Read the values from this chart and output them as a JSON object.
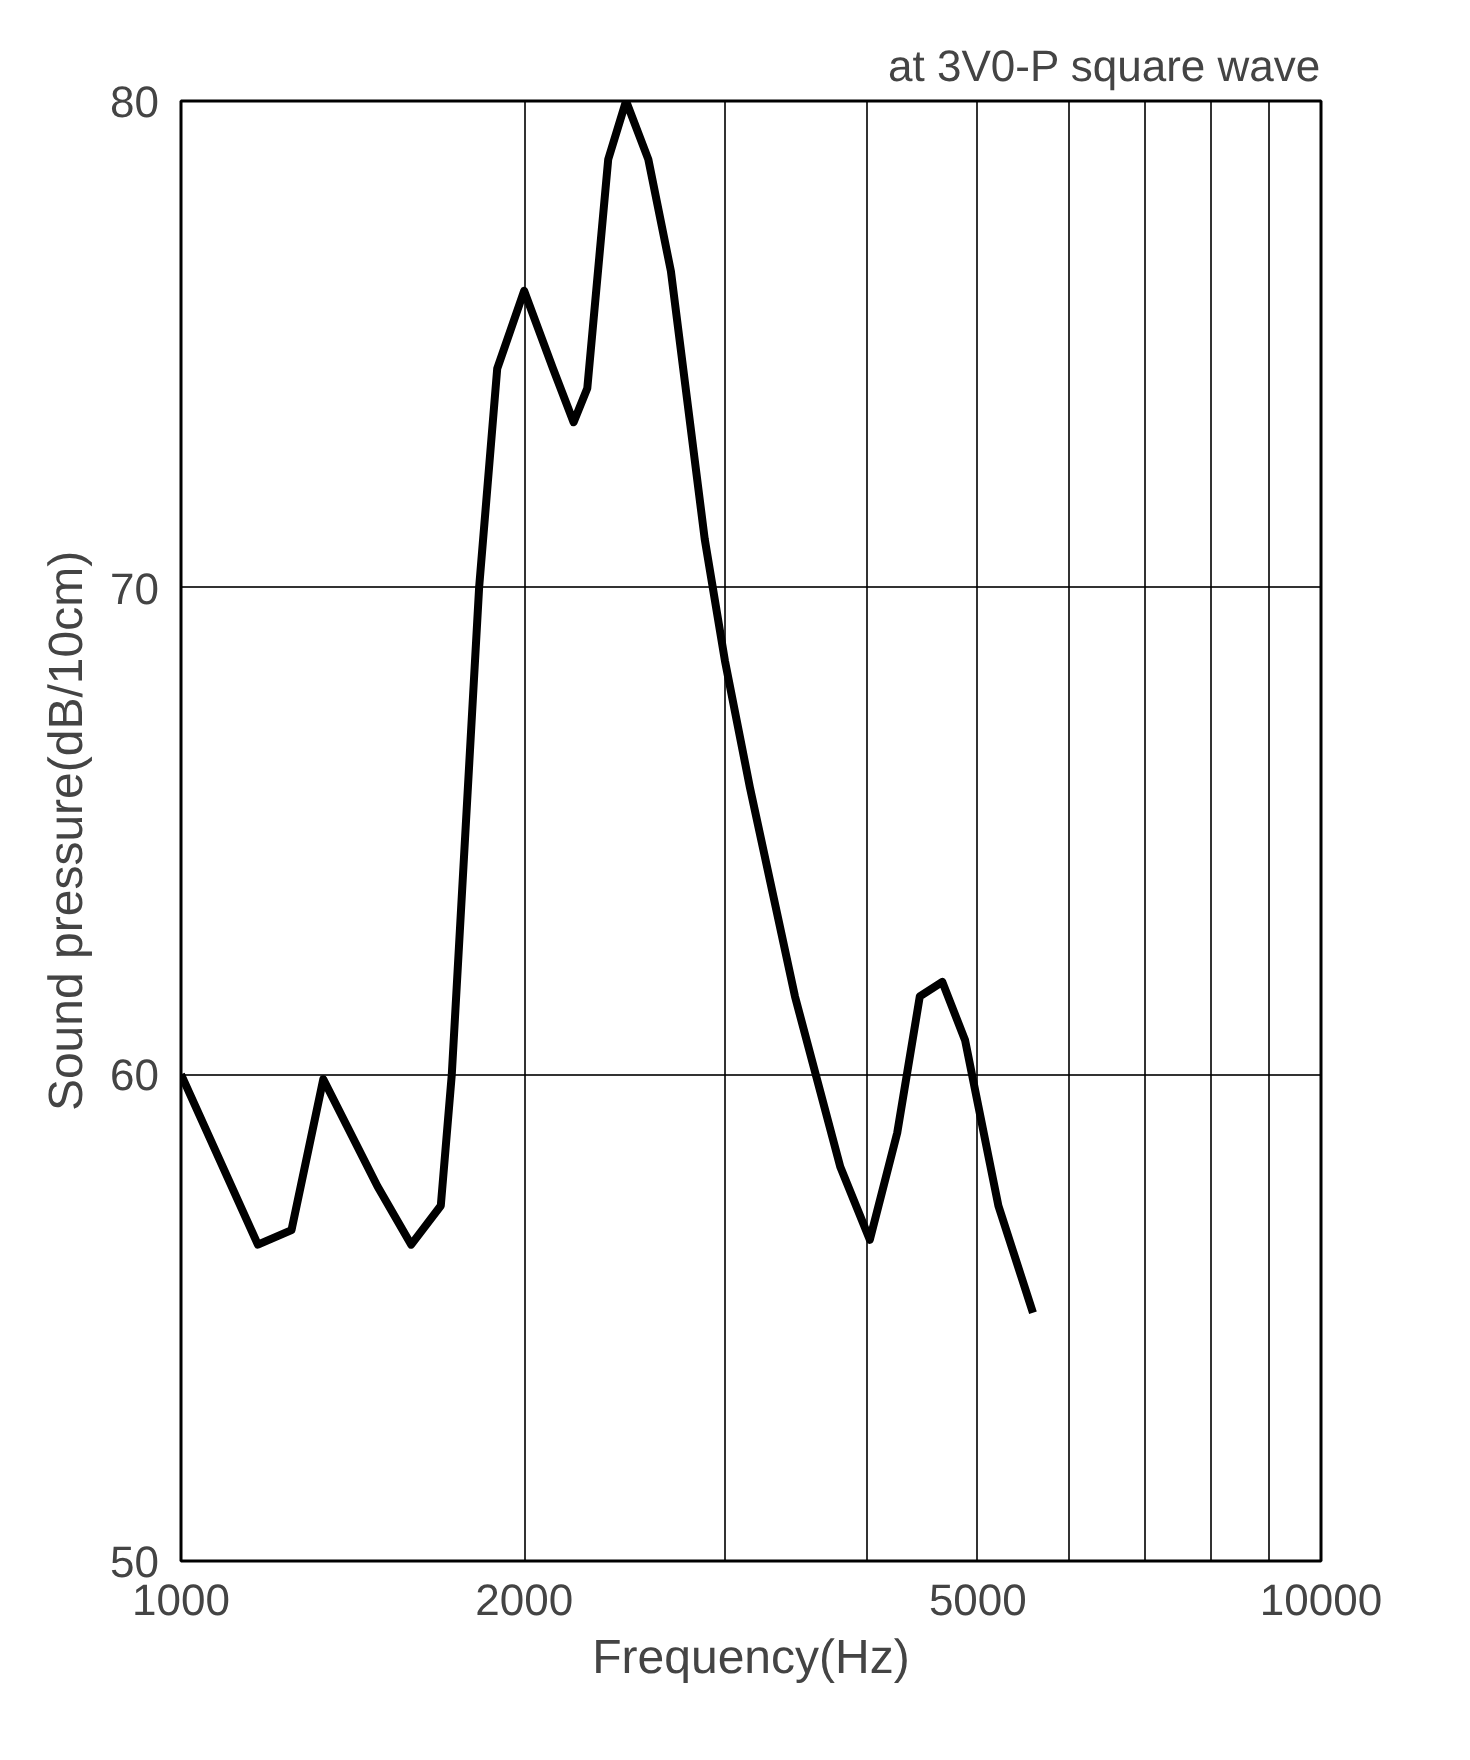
{
  "chart_data": {
    "type": "line",
    "title": "at 3V0-P square wave",
    "xlabel": "Frequency(Hz)",
    "ylabel": "Sound pressure(dB/10cm)",
    "log": "x",
    "grid": true,
    "line_style": "solid",
    "marker": "none",
    "xlim": [
      1000,
      10000
    ],
    "ylim": [
      50,
      80
    ],
    "xticks": [
      1000,
      2000,
      {
        "value": 3000,
        "label": null
      },
      {
        "value": 4000,
        "label": null
      },
      5000,
      {
        "value": 6000,
        "label": null
      },
      {
        "value": 7000,
        "label": null
      },
      {
        "value": 8000,
        "label": null
      },
      {
        "value": 9000,
        "label": null
      },
      10000
    ],
    "yticks": [
      50,
      60,
      70,
      80
    ],
    "series": [
      {
        "color": "#000000",
        "x": [
          1000,
          1168,
          1250,
          1333,
          1487,
          1592,
          1690,
          1728,
          1826,
          1894,
          2000,
          2120,
          2210,
          2272,
          2370,
          2457,
          2570,
          2690,
          2880,
          3000,
          3155,
          3456,
          3787,
          4020,
          4249,
          4447,
          4654,
          4873,
          5212,
          5589
        ],
        "values": [
          60.0,
          56.5,
          56.8,
          59.9,
          57.7,
          56.5,
          57.3,
          60.0,
          70.0,
          74.5,
          76.1,
          74.5,
          73.4,
          74.1,
          78.8,
          80.0,
          78.8,
          76.5,
          71.0,
          68.5,
          65.9,
          61.6,
          58.1,
          56.6,
          58.8,
          61.6,
          61.9,
          60.7,
          57.3,
          55.1
        ]
      }
    ]
  }
}
